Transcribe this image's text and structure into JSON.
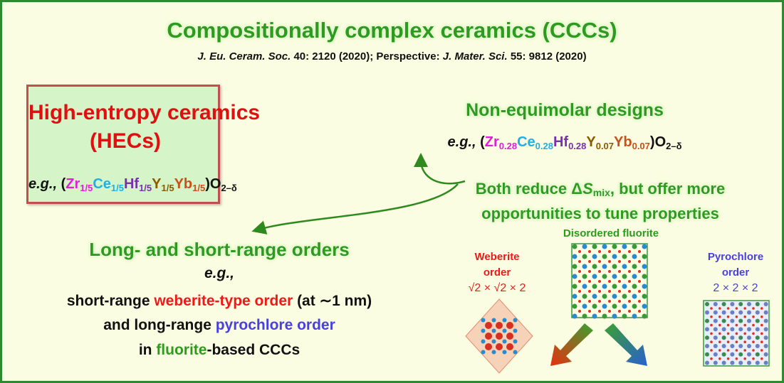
{
  "title": "Compositionally complex ceramics (CCCs)",
  "citation": {
    "journal1": "J. Eu. Ceram. Soc.",
    "ref1": " 40: 2120 (2020); Perspective: ",
    "journal2": "J. Mater. Sci.",
    "ref2": " 55: 9812 (2020)"
  },
  "hec": {
    "title": [
      "High-entropy ceramics",
      "(HECs)"
    ],
    "formula": {
      "eg": "e.g.,",
      "open": " (",
      "elements": [
        {
          "symbol": "Zr",
          "sub": "1/5"
        },
        {
          "symbol": "Ce",
          "sub": "1/5"
        },
        {
          "symbol": "Hf",
          "sub": "1/5"
        },
        {
          "symbol": "Y",
          "sub": "1/5"
        },
        {
          "symbol": "Yb",
          "sub": "1/5"
        }
      ],
      "close": ")O",
      "sub": "2–δ"
    }
  },
  "non_equimolar": {
    "title": "Non-equimolar designs",
    "formula": {
      "eg": "e.g.,",
      "open": " (",
      "elements": [
        {
          "symbol": "Zr",
          "sub": "0.28"
        },
        {
          "symbol": "Ce",
          "sub": "0.28"
        },
        {
          "symbol": "Hf",
          "sub": "0.28"
        },
        {
          "symbol": "Y",
          "sub": "0.07"
        },
        {
          "symbol": "Yb",
          "sub": "0.07"
        }
      ],
      "close": ")O",
      "sub": "2–δ"
    }
  },
  "note": {
    "line1": {
      "before": "Both reduce Δ",
      "symbol": "S",
      "sub": "mix",
      "after": ", but offer more"
    },
    "line2": "opportunities to tune properties"
  },
  "orders": {
    "title": "Long- and short-range orders",
    "eg": "e.g.,",
    "line1": {
      "a": "short-range ",
      "b": "weberite-type order",
      "c": " (at ∼1 nm)"
    },
    "line2": {
      "a": "and long-range ",
      "b": "pyrochlore order"
    },
    "line3": {
      "a": "in ",
      "b": "fluorite",
      "c": "-based CCCs"
    }
  },
  "structures": {
    "disordered": "Disordered fluorite",
    "weberite": {
      "name": [
        "Weberite",
        "order"
      ],
      "cell": "√2 × √2 × 2"
    },
    "pyrochlore": {
      "name": [
        "Pyrochlore",
        "order"
      ],
      "cell": "2 × 2 × 2"
    }
  }
}
